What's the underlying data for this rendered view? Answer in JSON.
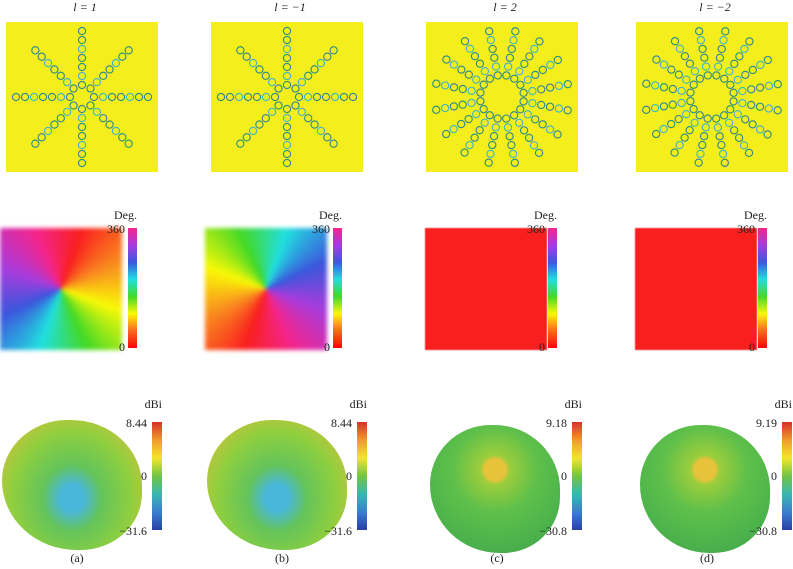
{
  "columns": [
    {
      "title": "l = 1",
      "phase_unit": "Deg.",
      "phase_max": "360",
      "phase_min": "0",
      "gain_unit": "dBi",
      "gain_max": "8.44",
      "gain_zero": "0",
      "gain_min": "−31.6",
      "caption": "(a)"
    },
    {
      "title": "l = −1",
      "phase_unit": "Deg.",
      "phase_max": "360",
      "phase_min": "0",
      "gain_unit": "dBi",
      "gain_max": "8.44",
      "gain_zero": "0",
      "gain_min": "−31.6",
      "caption": "(b)"
    },
    {
      "title": "l = 2",
      "phase_unit": "Deg.",
      "phase_max": "360",
      "phase_min": "0",
      "gain_unit": "dBi",
      "gain_max": "9.18",
      "gain_zero": "0",
      "gain_min": "−30.8",
      "caption": "(c)"
    },
    {
      "title": "l = −2",
      "phase_unit": "Deg.",
      "phase_max": "360",
      "phase_min": "0",
      "gain_unit": "dBi",
      "gain_max": "9.19",
      "gain_zero": "0",
      "gain_min": "−30.8",
      "caption": "(d)"
    }
  ]
}
